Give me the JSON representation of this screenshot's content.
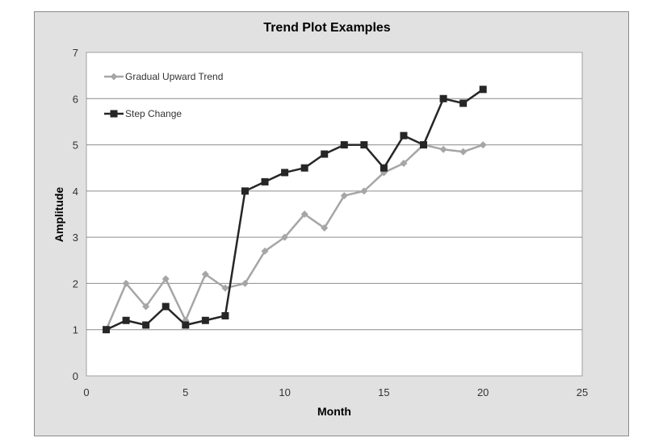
{
  "chart_data": {
    "type": "line",
    "title": "Trend Plot Examples",
    "xlabel": "Month",
    "ylabel": "Amplitude",
    "xlim": [
      0,
      25
    ],
    "ylim": [
      0,
      7
    ],
    "xticks": [
      0,
      5,
      10,
      15,
      20,
      25
    ],
    "yticks": [
      0,
      1,
      2,
      3,
      4,
      5,
      6,
      7
    ],
    "grid": "horizontal",
    "legend_position": "top-left",
    "series": [
      {
        "name": "Gradual Upward Trend",
        "color": "#a6a6a6",
        "marker": "diamond",
        "x": [
          1,
          2,
          3,
          4,
          5,
          6,
          7,
          8,
          9,
          10,
          11,
          12,
          13,
          14,
          15,
          16,
          17,
          18,
          19,
          20
        ],
        "y": [
          1.0,
          2.0,
          1.5,
          2.1,
          1.2,
          2.2,
          1.9,
          2.0,
          2.7,
          3.0,
          3.5,
          3.2,
          3.9,
          4.0,
          4.4,
          4.6,
          5.0,
          4.9,
          4.85,
          5.0
        ]
      },
      {
        "name": "Step Change",
        "color": "#262626",
        "marker": "square",
        "x": [
          1,
          2,
          3,
          4,
          5,
          6,
          7,
          8,
          9,
          10,
          11,
          12,
          13,
          14,
          15,
          16,
          17,
          18,
          19,
          20
        ],
        "y": [
          1.0,
          1.2,
          1.1,
          1.5,
          1.1,
          1.2,
          1.3,
          4.0,
          4.2,
          4.4,
          4.5,
          4.8,
          5.0,
          5.0,
          4.5,
          5.2,
          5.0,
          6.0,
          5.9,
          6.2
        ]
      }
    ]
  }
}
